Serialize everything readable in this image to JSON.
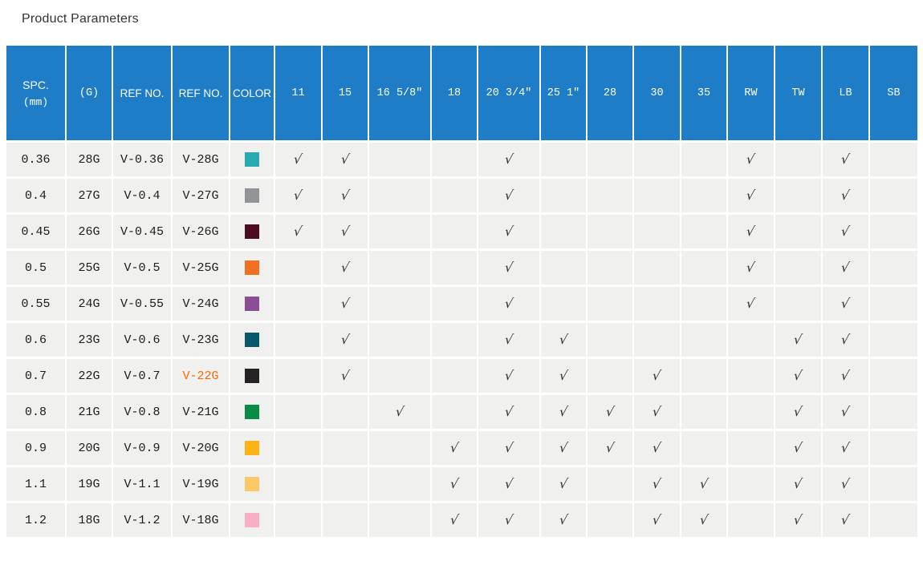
{
  "page": {
    "title": "Product Parameters"
  },
  "colors": {
    "header_bg": "#1e7dc6",
    "row_bg": "#f0f0ef",
    "check_color": "#333333",
    "highlight_ref_color": "#ff6600"
  },
  "table": {
    "check_glyph": "√",
    "columns": [
      {
        "key": "spc",
        "label": "SPC.",
        "sublabel": "(mm)"
      },
      {
        "key": "g",
        "label": "(G)"
      },
      {
        "key": "ref1",
        "label": "REF NO."
      },
      {
        "key": "ref2",
        "label": "REF NO."
      },
      {
        "key": "color",
        "label": "COLOR"
      },
      {
        "key": "c11",
        "label": "11"
      },
      {
        "key": "c15",
        "label": "15"
      },
      {
        "key": "c16",
        "label": "16 5/8″"
      },
      {
        "key": "c18",
        "label": "18"
      },
      {
        "key": "c20",
        "label": "20 3/4″"
      },
      {
        "key": "c25",
        "label": "25 1″"
      },
      {
        "key": "c28",
        "label": "28"
      },
      {
        "key": "c30",
        "label": "30"
      },
      {
        "key": "c35",
        "label": "35"
      },
      {
        "key": "rw",
        "label": "RW"
      },
      {
        "key": "tw",
        "label": "TW"
      },
      {
        "key": "lb",
        "label": "LB"
      },
      {
        "key": "sb",
        "label": "SB"
      }
    ],
    "rows": [
      {
        "spc": "0.36",
        "g": "28G",
        "ref1": "V-0.36",
        "ref2": "V-28G",
        "swatch": "#2aaab0",
        "checks": [
          "c11",
          "c15",
          "c20",
          "rw",
          "lb"
        ]
      },
      {
        "spc": "0.4",
        "g": "27G",
        "ref1": "V-0.4",
        "ref2": "V-27G",
        "swatch": "#929497",
        "checks": [
          "c11",
          "c15",
          "c20",
          "rw",
          "lb"
        ]
      },
      {
        "spc": "0.45",
        "g": "26G",
        "ref1": "V-0.45",
        "ref2": "V-26G",
        "swatch": "#4a0d22",
        "checks": [
          "c11",
          "c15",
          "c20",
          "rw",
          "lb"
        ]
      },
      {
        "spc": "0.5",
        "g": "25G",
        "ref1": "V-0.5",
        "ref2": "V-25G",
        "swatch": "#f26f21",
        "checks": [
          "c15",
          "c20",
          "rw",
          "lb"
        ]
      },
      {
        "spc": "0.55",
        "g": "24G",
        "ref1": "V-0.55",
        "ref2": "V-24G",
        "swatch": "#8c4d97",
        "checks": [
          "c15",
          "c20",
          "rw",
          "lb"
        ]
      },
      {
        "spc": "0.6",
        "g": "23G",
        "ref1": "V-0.6",
        "ref2": "V-23G",
        "swatch": "#07586a",
        "checks": [
          "c15",
          "c20",
          "c25",
          "tw",
          "lb"
        ]
      },
      {
        "spc": "0.7",
        "g": "22G",
        "ref1": "V-0.7",
        "ref2": "V-22G",
        "ref2_color": "#ff6600",
        "swatch": "#262122",
        "checks": [
          "c15",
          "c20",
          "c25",
          "c30",
          "tw",
          "lb"
        ]
      },
      {
        "spc": "0.8",
        "g": "21G",
        "ref1": "V-0.8",
        "ref2": "V-21G",
        "swatch": "#088b44",
        "checks": [
          "c16",
          "c20",
          "c25",
          "c28",
          "c30",
          "tw",
          "lb"
        ]
      },
      {
        "spc": "0.9",
        "g": "20G",
        "ref1": "V-0.9",
        "ref2": "V-20G",
        "swatch": "#fcb316",
        "checks": [
          "c18",
          "c20",
          "c25",
          "c28",
          "c30",
          "tw",
          "lb"
        ]
      },
      {
        "spc": "1.1",
        "g": "19G",
        "ref1": "V-1.1",
        "ref2": "V-19G",
        "swatch": "#fdc765",
        "checks": [
          "c18",
          "c20",
          "c25",
          "c30",
          "c35",
          "tw",
          "lb"
        ]
      },
      {
        "spc": "1.2",
        "g": "18G",
        "ref1": "V-1.2",
        "ref2": "V-18G",
        "swatch": "#f8aec3",
        "checks": [
          "c18",
          "c20",
          "c25",
          "c30",
          "c35",
          "tw",
          "lb"
        ]
      }
    ]
  }
}
